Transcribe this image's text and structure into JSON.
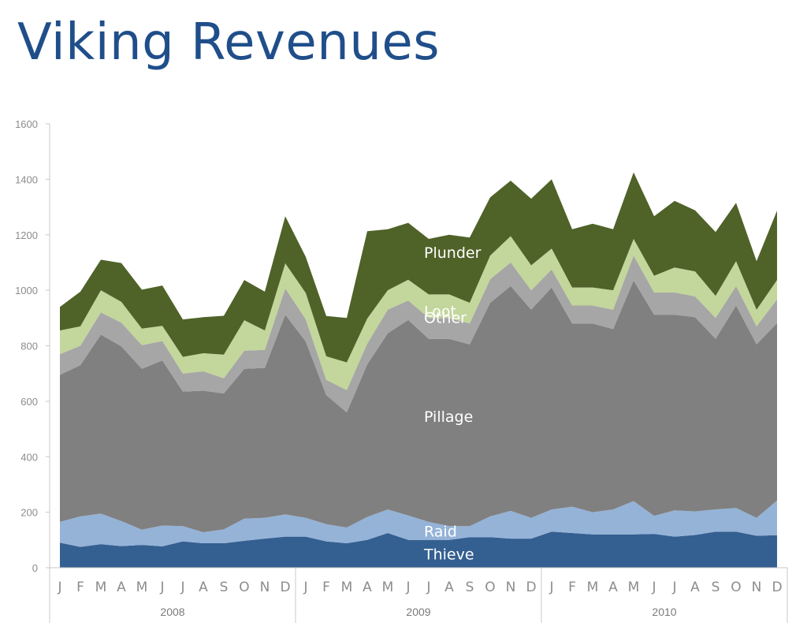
{
  "chart_data": {
    "type": "area",
    "stacked": true,
    "title": "Viking Revenues",
    "xlabel": "",
    "ylabel": "",
    "ylim": [
      0,
      1600
    ],
    "yticks": [
      0,
      200,
      400,
      600,
      800,
      1000,
      1200,
      1400,
      1600
    ],
    "months": [
      "J",
      "F",
      "M",
      "A",
      "M",
      "J",
      "J",
      "A",
      "S",
      "O",
      "N",
      "D",
      "J",
      "F",
      "M",
      "A",
      "M",
      "J",
      "J",
      "A",
      "S",
      "O",
      "N",
      "D",
      "J",
      "F",
      "M",
      "A",
      "M",
      "J",
      "J",
      "A",
      "S",
      "O",
      "N",
      "D"
    ],
    "years": [
      "2008",
      "2009",
      "2010"
    ],
    "series": [
      {
        "name": "Thieve",
        "color": "#345f91",
        "values": [
          90,
          75,
          85,
          78,
          82,
          77,
          95,
          88,
          88,
          97,
          105,
          112,
          112,
          95,
          88,
          100,
          125,
          100,
          100,
          100,
          110,
          110,
          105,
          105,
          130,
          125,
          120,
          120,
          120,
          122,
          112,
          118,
          130,
          130,
          115,
          117
        ]
      },
      {
        "name": "Raid",
        "color": "#95b3d7",
        "values": [
          75,
          110,
          110,
          90,
          55,
          75,
          55,
          40,
          50,
          80,
          75,
          80,
          68,
          62,
          57,
          83,
          85,
          88,
          65,
          50,
          40,
          75,
          100,
          75,
          80,
          95,
          80,
          90,
          120,
          65,
          95,
          85,
          80,
          85,
          65,
          125
        ]
      },
      {
        "name": "Pillage",
        "color": "#808080",
        "values": [
          530,
          545,
          645,
          630,
          580,
          595,
          485,
          510,
          490,
          540,
          540,
          720,
          635,
          465,
          415,
          550,
          635,
          705,
          660,
          675,
          655,
          770,
          810,
          750,
          800,
          660,
          680,
          650,
          795,
          725,
          705,
          700,
          615,
          730,
          625,
          640
        ]
      },
      {
        "name": "Other",
        "color": "#a6a6a6",
        "values": [
          75,
          70,
          80,
          85,
          85,
          70,
          65,
          70,
          55,
          65,
          65,
          95,
          80,
          55,
          80,
          75,
          85,
          70,
          75,
          75,
          75,
          85,
          85,
          70,
          65,
          65,
          65,
          70,
          90,
          80,
          80,
          75,
          75,
          70,
          65,
          85
        ]
      },
      {
        "name": "Loot",
        "color": "#c3d69b",
        "values": [
          85,
          70,
          80,
          75,
          60,
          55,
          60,
          65,
          85,
          110,
          70,
          90,
          95,
          85,
          100,
          90,
          70,
          75,
          85,
          85,
          75,
          85,
          95,
          90,
          75,
          65,
          65,
          70,
          60,
          60,
          90,
          90,
          80,
          90,
          60,
          70
        ]
      },
      {
        "name": "Plunder",
        "color": "#4f6228",
        "values": [
          85,
          125,
          110,
          140,
          140,
          145,
          135,
          130,
          140,
          145,
          140,
          170,
          130,
          145,
          160,
          315,
          220,
          205,
          200,
          215,
          235,
          210,
          200,
          240,
          250,
          210,
          230,
          220,
          240,
          215,
          240,
          220,
          230,
          210,
          175,
          250
        ]
      }
    ],
    "series_labels": [
      "Plunder",
      "Loot",
      "Other",
      "Pillage",
      "Raid",
      "Thieve"
    ]
  }
}
